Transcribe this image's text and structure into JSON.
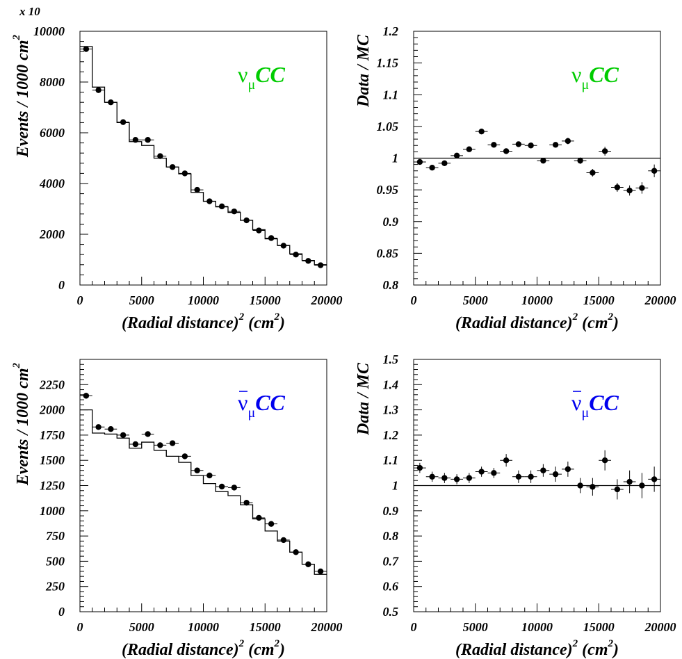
{
  "colors": {
    "numu": "#00cc00",
    "numubar": "#0000ee",
    "ink": "#000000"
  },
  "chart_data": [
    {
      "id": "numu-events",
      "type": "line",
      "label_main": "ν",
      "label_sub": "μ",
      "label_rest": "CC",
      "label_bar": false,
      "label_color": "#00cc00",
      "xlabel_main": "(Radial distance)",
      "xlabel_sup": "2",
      "xlabel_unit_open": " (cm",
      "xlabel_unit_sup": "2",
      "xlabel_unit_close": ")",
      "ylabel": "Events / 1000 cm",
      "ylabel_sup": "2",
      "scale_note": "x 10",
      "xlim": [
        0,
        20000
      ],
      "ylim": [
        0,
        10000
      ],
      "xticks": [
        "0",
        "5000",
        "10000",
        "15000",
        "20000"
      ],
      "yticks": [
        "0",
        "2000",
        "4000",
        "6000",
        "8000",
        "10000"
      ],
      "mc_series": {
        "name": "MC",
        "bin_edges": [
          0,
          1000,
          2000,
          3000,
          4000,
          5000,
          6000,
          7000,
          8000,
          9000,
          10000,
          11000,
          12000,
          13000,
          14000,
          15000,
          16000,
          17000,
          18000,
          19000,
          20000
        ],
        "values": [
          9400,
          7800,
          7200,
          6400,
          5650,
          5500,
          5000,
          4650,
          4380,
          3650,
          3300,
          3080,
          2860,
          2550,
          2180,
          1820,
          1560,
          1230,
          970,
          800
        ]
      },
      "data_series": {
        "name": "Data",
        "x": [
          500,
          1500,
          2500,
          3500,
          4500,
          5500,
          6500,
          7500,
          8500,
          9500,
          10500,
          11500,
          12500,
          13500,
          14500,
          15500,
          16500,
          17500,
          18500,
          19500
        ],
        "y": [
          9300,
          7680,
          7200,
          6420,
          5720,
          5720,
          5080,
          4650,
          4400,
          3750,
          3300,
          3100,
          2900,
          2550,
          2150,
          1850,
          1550,
          1200,
          950,
          780
        ],
        "yerr": [
          0,
          0,
          0,
          0,
          0,
          0,
          0,
          0,
          0,
          0,
          0,
          0,
          0,
          0,
          0,
          0,
          0,
          0,
          0,
          0
        ]
      },
      "reference_line": null
    },
    {
      "id": "numu-ratio",
      "type": "scatter",
      "label_main": "ν",
      "label_sub": "μ",
      "label_rest": "CC",
      "label_bar": false,
      "label_color": "#00cc00",
      "xlabel_main": "(Radial distance)",
      "xlabel_sup": "2",
      "xlabel_unit_open": " (cm",
      "xlabel_unit_sup": "2",
      "xlabel_unit_close": ")",
      "ylabel": "Data / MC",
      "ylabel_sup": "",
      "scale_note": "",
      "xlim": [
        0,
        20000
      ],
      "ylim": [
        0.8,
        1.2
      ],
      "xticks": [
        "0",
        "5000",
        "10000",
        "15000",
        "20000"
      ],
      "yticks": [
        "0.8",
        "0.85",
        "0.9",
        "0.95",
        "1",
        "1.05",
        "1.1",
        "1.15",
        "1.2"
      ],
      "mc_series": null,
      "data_series": {
        "name": "Data/MC",
        "x": [
          500,
          1500,
          2500,
          3500,
          4500,
          5500,
          6500,
          7500,
          8500,
          9500,
          10500,
          11500,
          12500,
          13500,
          14500,
          15500,
          16500,
          17500,
          18500,
          19500
        ],
        "y": [
          0.994,
          0.985,
          0.992,
          1.004,
          1.014,
          1.042,
          1.021,
          1.011,
          1.022,
          1.02,
          0.996,
          1.021,
          1.027,
          0.996,
          0.977,
          1.011,
          0.954,
          0.949,
          0.953,
          0.98
        ],
        "yerr": [
          0.004,
          0.004,
          0.004,
          0.004,
          0.004,
          0.004,
          0.004,
          0.004,
          0.004,
          0.004,
          0.004,
          0.004,
          0.005,
          0.005,
          0.006,
          0.007,
          0.007,
          0.008,
          0.009,
          0.01
        ]
      },
      "reference_line": 1
    },
    {
      "id": "numubar-events",
      "type": "line",
      "label_main": "ν",
      "label_sub": "μ",
      "label_rest": "CC",
      "label_bar": true,
      "label_color": "#0000ee",
      "xlabel_main": "(Radial distance)",
      "xlabel_sup": "2",
      "xlabel_unit_open": " (cm",
      "xlabel_unit_sup": "2",
      "xlabel_unit_close": ")",
      "ylabel": "Events / 1000 cm",
      "ylabel_sup": "2",
      "scale_note": "",
      "xlim": [
        0,
        20000
      ],
      "ylim": [
        0,
        2500
      ],
      "xticks": [
        "0",
        "5000",
        "10000",
        "15000",
        "20000"
      ],
      "yticks": [
        "0",
        "250",
        "500",
        "750",
        "1000",
        "1250",
        "1500",
        "1750",
        "2000",
        "2250"
      ],
      "mc_series": {
        "name": "MC",
        "bin_edges": [
          0,
          1000,
          2000,
          3000,
          4000,
          5000,
          6000,
          7000,
          8000,
          9000,
          10000,
          11000,
          12000,
          13000,
          14000,
          15000,
          16000,
          17000,
          18000,
          19000,
          20000
        ],
        "values": [
          2000,
          1770,
          1760,
          1720,
          1620,
          1680,
          1600,
          1540,
          1480,
          1350,
          1270,
          1190,
          1150,
          1060,
          920,
          800,
          700,
          590,
          470,
          370
        ]
      },
      "data_series": {
        "name": "Data",
        "x": [
          500,
          1500,
          2500,
          3500,
          4500,
          5500,
          6500,
          7500,
          8500,
          9500,
          10500,
          11500,
          12500,
          13500,
          14500,
          15500,
          16500,
          17500,
          18500,
          19500
        ],
        "y": [
          2140,
          1830,
          1810,
          1750,
          1660,
          1760,
          1650,
          1670,
          1540,
          1400,
          1350,
          1240,
          1230,
          1080,
          930,
          870,
          710,
          590,
          470,
          400
        ],
        "yerr": [
          30,
          25,
          25,
          25,
          24,
          25,
          24,
          24,
          23,
          22,
          21,
          20,
          20,
          19,
          17,
          16,
          15,
          13,
          12,
          11
        ]
      },
      "reference_line": null
    },
    {
      "id": "numubar-ratio",
      "type": "scatter",
      "label_main": "ν",
      "label_sub": "μ",
      "label_rest": "CC",
      "label_bar": true,
      "label_color": "#0000ee",
      "xlabel_main": "(Radial distance)",
      "xlabel_sup": "2",
      "xlabel_unit_open": " (cm",
      "xlabel_unit_sup": "2",
      "xlabel_unit_close": ")",
      "ylabel": "Data / MC",
      "ylabel_sup": "",
      "scale_note": "",
      "xlim": [
        0,
        20000
      ],
      "ylim": [
        0.5,
        1.5
      ],
      "xticks": [
        "0",
        "5000",
        "10000",
        "15000",
        "20000"
      ],
      "yticks": [
        "0.5",
        "0.6",
        "0.7",
        "0.8",
        "0.9",
        "1",
        "1.1",
        "1.2",
        "1.3",
        "1.4",
        "1.5"
      ],
      "mc_series": null,
      "data_series": {
        "name": "Data/MC",
        "x": [
          500,
          1500,
          2500,
          3500,
          4500,
          5500,
          6500,
          7500,
          8500,
          9500,
          10500,
          11500,
          12500,
          13500,
          14500,
          15500,
          16500,
          17500,
          18500,
          19500
        ],
        "y": [
          1.07,
          1.035,
          1.03,
          1.025,
          1.03,
          1.055,
          1.05,
          1.1,
          1.035,
          1.035,
          1.06,
          1.045,
          1.065,
          1.0,
          0.995,
          1.1,
          0.985,
          1.015,
          1.0,
          1.025
        ],
        "yerr": [
          0.02,
          0.02,
          0.02,
          0.02,
          0.02,
          0.02,
          0.02,
          0.025,
          0.025,
          0.025,
          0.025,
          0.03,
          0.03,
          0.03,
          0.035,
          0.04,
          0.04,
          0.045,
          0.05,
          0.05
        ]
      },
      "reference_line": 1
    }
  ]
}
